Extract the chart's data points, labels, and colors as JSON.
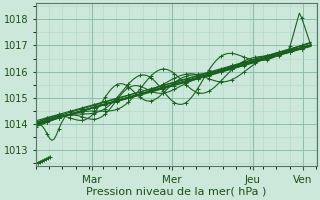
{
  "title": "",
  "xlabel": "Pression niveau de la mer( hPa )",
  "ylabel": "",
  "bg_color": "#cce8da",
  "plot_bg_color": "#cce8da",
  "grid_major_color": "#8abfaa",
  "grid_minor_color": "#b0d8c4",
  "line_color": "#1a6020",
  "ylim": [
    1012.4,
    1018.6
  ],
  "xlim": [
    0.0,
    5.0
  ],
  "yticks": [
    1013,
    1014,
    1015,
    1016,
    1017,
    1018
  ],
  "xtick_positions": [
    1.0,
    2.43,
    3.86,
    4.76
  ],
  "xtick_labels": [
    "Mar",
    "Mer",
    "Jeu",
    "Ven"
  ],
  "xlabel_fontsize": 8,
  "ytick_fontsize": 7,
  "xtick_fontsize": 7.5
}
